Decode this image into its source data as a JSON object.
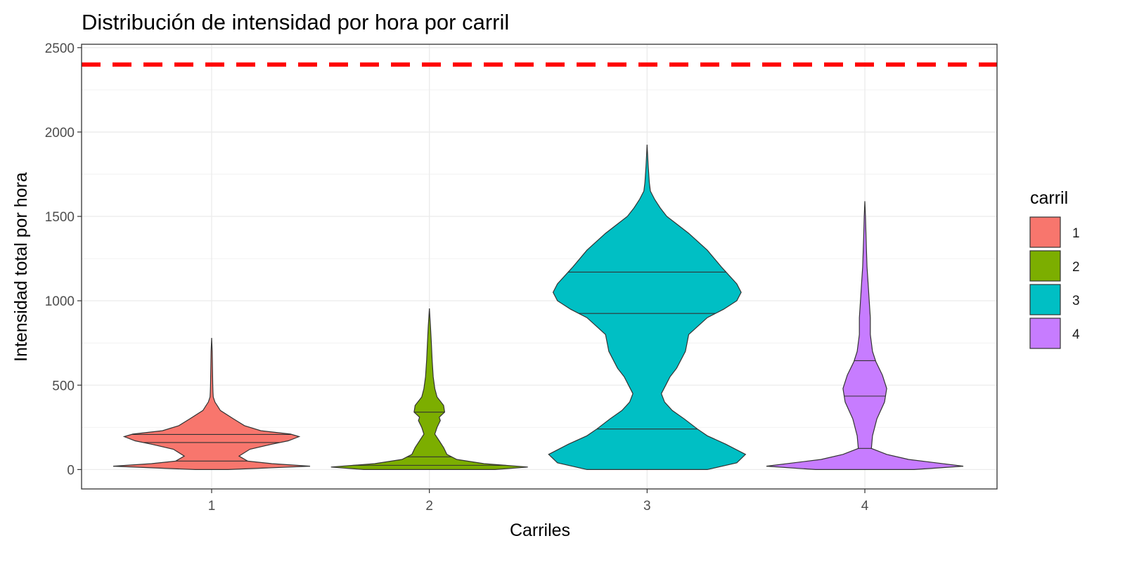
{
  "chart_data": {
    "type": "violin",
    "title": "Distribución de intensidad por hora por carril",
    "xlabel": "Carriles",
    "ylabel": "Intensidad total por hora",
    "categories": [
      "1",
      "2",
      "3",
      "4"
    ],
    "ylim": [
      -115,
      2520
    ],
    "yticks": [
      0,
      500,
      1000,
      1500,
      2000,
      2500
    ],
    "ytick_labels": [
      "0",
      "500",
      "1000",
      "1500",
      "2000",
      "2500"
    ],
    "grid": true,
    "reference_line": {
      "y": 2400,
      "color": "#ff0000",
      "style": "dashed"
    },
    "legend": {
      "title": "carril",
      "position": "right",
      "entries": [
        "1",
        "2",
        "3",
        "4"
      ]
    },
    "series": [
      {
        "category": "1",
        "color": "#F8766D",
        "quantiles": [
          50,
          160,
          208
        ],
        "max": 780,
        "density": [
          [
            0,
            0.15
          ],
          [
            20,
            0.9
          ],
          [
            35,
            0.55
          ],
          [
            50,
            0.33
          ],
          [
            80,
            0.25
          ],
          [
            120,
            0.35
          ],
          [
            150,
            0.55
          ],
          [
            170,
            0.7
          ],
          [
            195,
            0.8
          ],
          [
            210,
            0.72
          ],
          [
            230,
            0.45
          ],
          [
            260,
            0.3
          ],
          [
            300,
            0.2
          ],
          [
            350,
            0.08
          ],
          [
            380,
            0.05
          ],
          [
            400,
            0.03
          ],
          [
            430,
            0.015
          ],
          [
            460,
            0.012
          ],
          [
            500,
            0.01
          ],
          [
            600,
            0.008
          ],
          [
            700,
            0.005
          ],
          [
            780,
            0
          ]
        ]
      },
      {
        "category": "2",
        "color": "#7CAE00",
        "quantiles": [
          25,
          75,
          340
        ],
        "max": 955,
        "density": [
          [
            0,
            0.6
          ],
          [
            15,
            0.9
          ],
          [
            35,
            0.5
          ],
          [
            60,
            0.25
          ],
          [
            90,
            0.16
          ],
          [
            130,
            0.13
          ],
          [
            170,
            0.09
          ],
          [
            210,
            0.05
          ],
          [
            250,
            0.07
          ],
          [
            290,
            0.1
          ],
          [
            310,
            0.09
          ],
          [
            340,
            0.14
          ],
          [
            380,
            0.13
          ],
          [
            430,
            0.07
          ],
          [
            480,
            0.05
          ],
          [
            550,
            0.035
          ],
          [
            650,
            0.025
          ],
          [
            750,
            0.018
          ],
          [
            850,
            0.01
          ],
          [
            955,
            0
          ]
        ]
      },
      {
        "category": "3",
        "color": "#00BFC4",
        "quantiles": [
          240,
          925,
          1170
        ],
        "max": 1925,
        "density": [
          [
            0,
            0.55
          ],
          [
            40,
            0.82
          ],
          [
            90,
            0.9
          ],
          [
            150,
            0.72
          ],
          [
            200,
            0.55
          ],
          [
            240,
            0.46
          ],
          [
            300,
            0.34
          ],
          [
            350,
            0.23
          ],
          [
            400,
            0.16
          ],
          [
            450,
            0.13
          ],
          [
            500,
            0.17
          ],
          [
            550,
            0.21
          ],
          [
            600,
            0.27
          ],
          [
            700,
            0.35
          ],
          [
            800,
            0.38
          ],
          [
            900,
            0.55
          ],
          [
            950,
            0.7
          ],
          [
            1000,
            0.82
          ],
          [
            1050,
            0.86
          ],
          [
            1100,
            0.82
          ],
          [
            1200,
            0.68
          ],
          [
            1300,
            0.55
          ],
          [
            1400,
            0.38
          ],
          [
            1450,
            0.28
          ],
          [
            1500,
            0.18
          ],
          [
            1550,
            0.12
          ],
          [
            1600,
            0.07
          ],
          [
            1650,
            0.03
          ],
          [
            1700,
            0.02
          ],
          [
            1800,
            0.01
          ],
          [
            1925,
            0
          ]
        ]
      },
      {
        "category": "4",
        "color": "#C77CFF",
        "quantiles": [
          125,
          435,
          645
        ],
        "max": 1590,
        "density": [
          [
            0,
            0.45
          ],
          [
            20,
            0.9
          ],
          [
            40,
            0.65
          ],
          [
            60,
            0.4
          ],
          [
            90,
            0.2
          ],
          [
            125,
            0.06
          ],
          [
            200,
            0.07
          ],
          [
            300,
            0.11
          ],
          [
            400,
            0.18
          ],
          [
            480,
            0.2
          ],
          [
            560,
            0.16
          ],
          [
            640,
            0.1
          ],
          [
            700,
            0.07
          ],
          [
            800,
            0.05
          ],
          [
            900,
            0.05
          ],
          [
            1000,
            0.04
          ],
          [
            1100,
            0.03
          ],
          [
            1200,
            0.02
          ],
          [
            1300,
            0.015
          ],
          [
            1400,
            0.01
          ],
          [
            1500,
            0.006
          ],
          [
            1590,
            0
          ]
        ]
      }
    ]
  }
}
